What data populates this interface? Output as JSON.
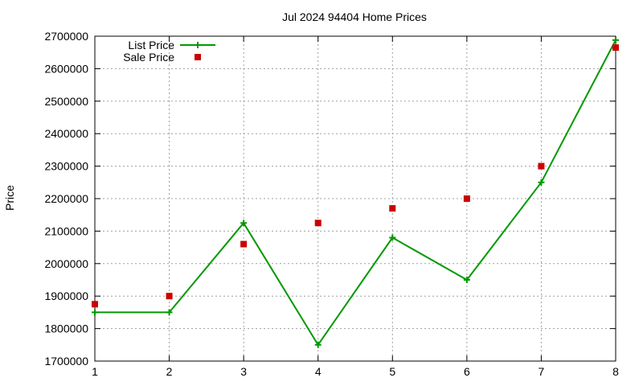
{
  "chart_data": {
    "type": "line",
    "title": "Jul 2024 94404 Home Prices",
    "xlabel": "",
    "ylabel": "Price",
    "x": [
      1,
      2,
      3,
      4,
      5,
      6,
      7,
      8
    ],
    "xlim": [
      1,
      8
    ],
    "ylim": [
      1700000,
      2700000
    ],
    "xticks": [
      "1",
      "2",
      "3",
      "4",
      "5",
      "6",
      "7",
      "8"
    ],
    "yticks": [
      "1700000",
      "1800000",
      "1900000",
      "2000000",
      "2100000",
      "2200000",
      "2300000",
      "2400000",
      "2500000",
      "2600000",
      "2700000"
    ],
    "grid": true,
    "legend_position": "top-left",
    "series": [
      {
        "name": "List Price",
        "style": "line with plus markers",
        "color": "#009900",
        "values": [
          1850000,
          1850000,
          2125000,
          1750000,
          2080000,
          1950000,
          2250000,
          2688000
        ]
      },
      {
        "name": "Sale Price",
        "style": "square markers",
        "color": "#cc0000",
        "values": [
          1875000,
          1900000,
          2060000,
          2125000,
          2170000,
          2200000,
          2300000,
          2665000
        ]
      }
    ]
  }
}
